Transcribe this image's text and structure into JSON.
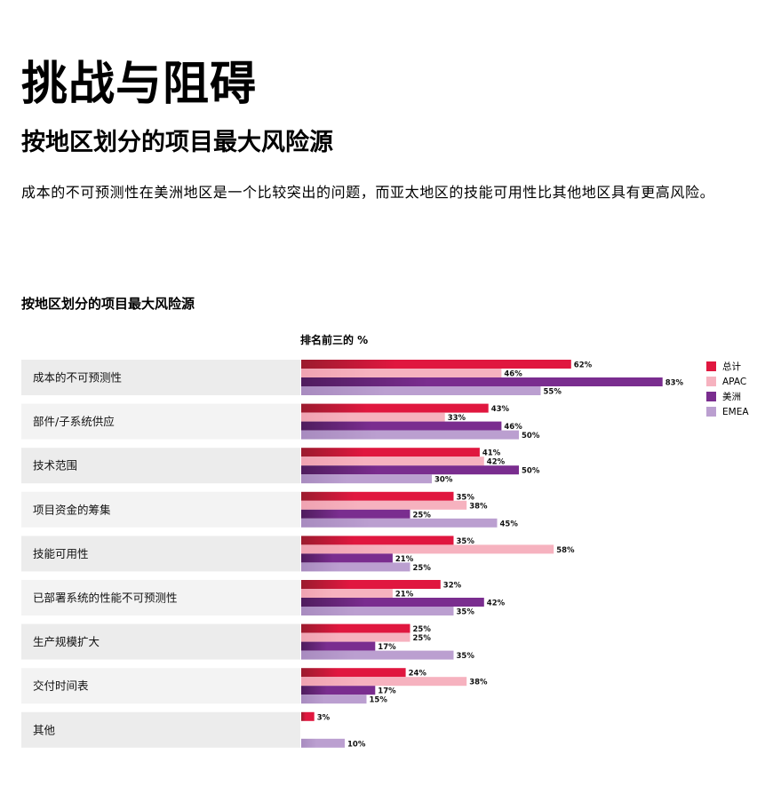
{
  "header": {
    "title": "挑战与阻碍",
    "subtitle": "按地区划分的项目最大风险源",
    "description": "成本的不可预测性在美洲地区是一个比较突出的问题，而亚太地区的技能可用性比其他地区具有更高风险。"
  },
  "chart_data": {
    "type": "bar",
    "orientation": "horizontal",
    "title": "按地区划分的项目最大风险源",
    "xlabel": "排名前三的 %",
    "xlim": [
      0,
      100
    ],
    "legend_position": "top-right",
    "categories": [
      "成本的不可预测性",
      "部件/子系统供应",
      "技术范围",
      "项目资金的筹集",
      "技能可用性",
      "已部署系统的性能不可预测性",
      "生产规模扩大",
      "交付时间表",
      "其他"
    ],
    "series": [
      {
        "name": "总计",
        "color": "#e0173f",
        "values": [
          62,
          43,
          41,
          35,
          35,
          32,
          25,
          24,
          3
        ]
      },
      {
        "name": "APAC",
        "color": "#f6b2bf",
        "values": [
          46,
          33,
          42,
          38,
          58,
          21,
          25,
          38,
          null
        ]
      },
      {
        "name": "美洲",
        "color": "#7a2d8f",
        "values": [
          83,
          46,
          50,
          25,
          21,
          42,
          17,
          17,
          null
        ]
      },
      {
        "name": "EMEA",
        "color": "#bb9fd0",
        "values": [
          55,
          50,
          30,
          45,
          25,
          35,
          35,
          15,
          10
        ]
      }
    ]
  }
}
